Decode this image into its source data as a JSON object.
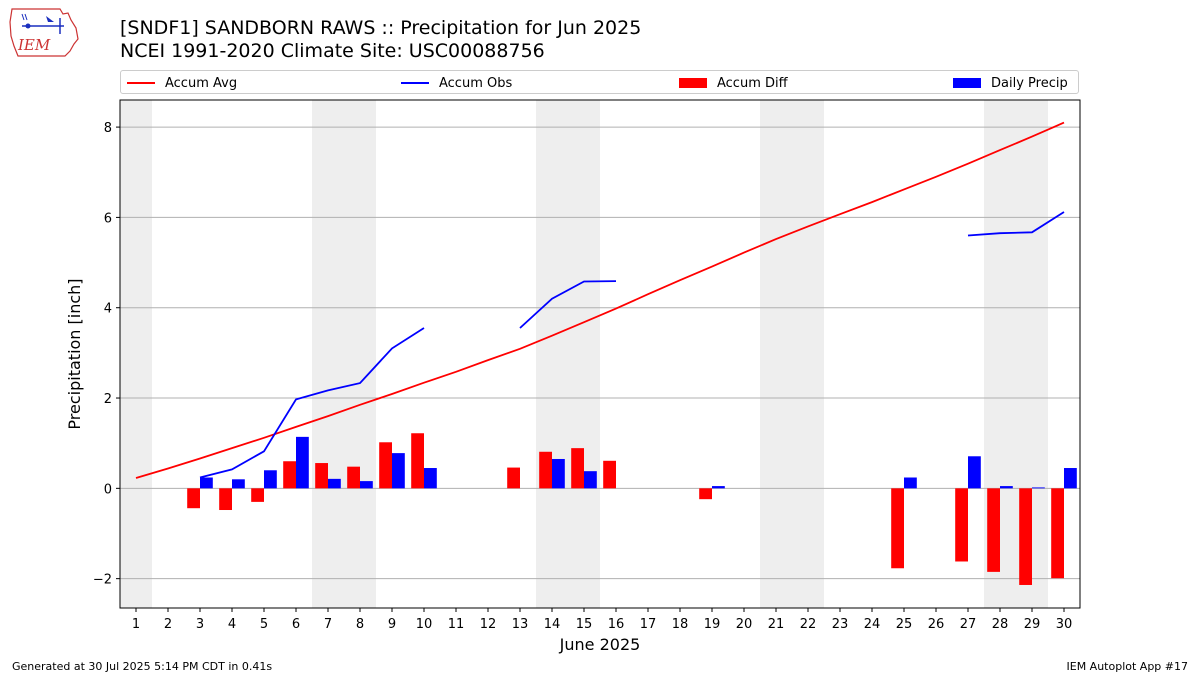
{
  "logo": {
    "text": "IEM"
  },
  "header": {
    "title_line1": "[SNDF1] SANDBORN RAWS :: Precipitation for Jun 2025",
    "title_line2": "NCEI 1991-2020 Climate Site: USC00088756"
  },
  "legend": {
    "items": [
      {
        "label": "Accum Avg",
        "kind": "line",
        "color": "#ff0000"
      },
      {
        "label": "Accum Obs",
        "kind": "line",
        "color": "#0000ff"
      },
      {
        "label": "Accum Diff",
        "kind": "bar",
        "color": "#ff0000"
      },
      {
        "label": "Daily Precip",
        "kind": "bar",
        "color": "#0000ff"
      }
    ]
  },
  "footer": {
    "left": "Generated at 30 Jul 2025 5:14 PM CDT in 0.41s",
    "right": "IEM Autoplot App #17"
  },
  "chart_data": {
    "type": "bar",
    "xlabel": "June 2025",
    "ylabel": "Precipitation [inch]",
    "xlim": [
      0.5,
      30.5
    ],
    "ylim": [
      -2.65,
      8.6
    ],
    "yticks": [
      -2,
      0,
      2,
      4,
      6,
      8
    ],
    "grid": "horizontal",
    "weekend_shading_days": [
      1,
      7,
      8,
      14,
      15,
      21,
      22,
      28,
      29
    ],
    "x": [
      1,
      2,
      3,
      4,
      5,
      6,
      7,
      8,
      9,
      10,
      11,
      12,
      13,
      14,
      15,
      16,
      17,
      18,
      19,
      20,
      21,
      22,
      23,
      24,
      25,
      26,
      27,
      28,
      29,
      30
    ],
    "series": [
      {
        "name": "Accum Avg",
        "kind": "line",
        "color": "#ff0000",
        "values": [
          0.23,
          0.44,
          0.66,
          0.89,
          1.12,
          1.36,
          1.6,
          1.85,
          2.09,
          2.34,
          2.58,
          2.84,
          3.09,
          3.38,
          3.68,
          3.98,
          4.3,
          4.61,
          4.91,
          5.22,
          5.52,
          5.8,
          6.07,
          6.34,
          6.62,
          6.9,
          7.19,
          7.49,
          7.79,
          8.1
        ]
      },
      {
        "name": "Accum Obs",
        "kind": "line",
        "color": "#0000ff",
        "values": [
          null,
          null,
          0.24,
          0.42,
          0.82,
          1.97,
          2.17,
          2.33,
          3.1,
          3.55,
          null,
          null,
          3.55,
          4.2,
          4.58,
          4.59,
          null,
          null,
          null,
          null,
          null,
          null,
          null,
          null,
          null,
          null,
          5.6,
          5.65,
          5.67,
          6.12
        ]
      },
      {
        "name": "Accum Diff",
        "kind": "bar",
        "color": "#ff0000",
        "values": [
          null,
          null,
          -0.44,
          -0.48,
          -0.3,
          0.6,
          0.56,
          0.48,
          1.02,
          1.22,
          null,
          null,
          0.46,
          0.81,
          0.89,
          0.61,
          null,
          null,
          -0.24,
          null,
          null,
          null,
          null,
          null,
          -1.77,
          null,
          -1.62,
          -1.85,
          -2.14,
          -1.99
        ]
      },
      {
        "name": "Daily Precip",
        "kind": "bar",
        "color": "#0000ff",
        "values": [
          null,
          null,
          0.24,
          0.2,
          0.4,
          1.14,
          0.21,
          0.16,
          0.78,
          0.45,
          null,
          null,
          null,
          0.65,
          0.38,
          null,
          null,
          null,
          0.05,
          null,
          null,
          null,
          null,
          null,
          0.24,
          null,
          0.71,
          0.05,
          0.02,
          0.45
        ]
      }
    ]
  }
}
